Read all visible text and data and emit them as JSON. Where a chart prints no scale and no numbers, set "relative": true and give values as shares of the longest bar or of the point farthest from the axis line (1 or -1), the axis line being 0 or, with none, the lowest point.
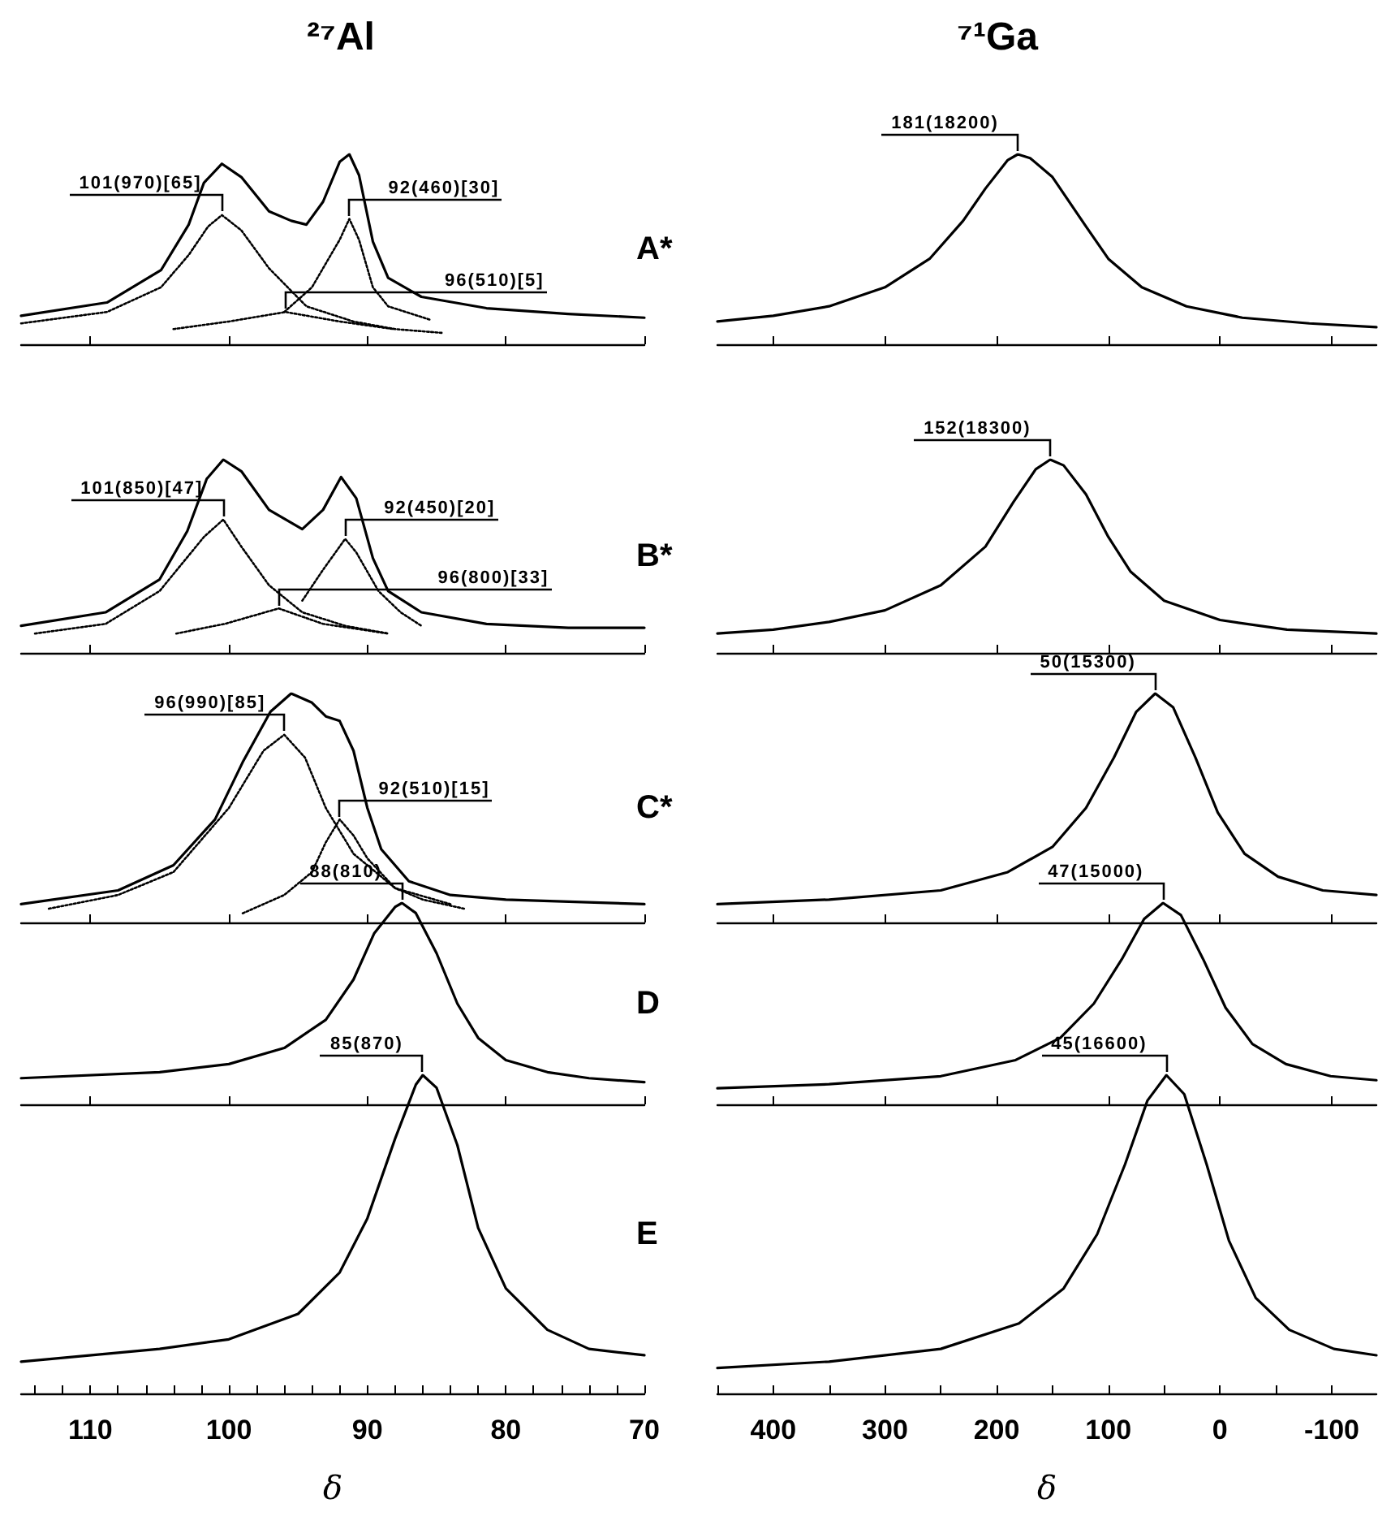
{
  "chart_data": [
    {
      "type": "line",
      "title": "²⁷Al",
      "relative": true,
      "xlim": [
        115,
        70
      ],
      "xticks": [
        110,
        100,
        90,
        80,
        70
      ],
      "tick_labels": false,
      "marker": "none",
      "line_style": "solid",
      "series": [
        {
          "color": "#000000",
          "x": [
            115,
            108.8,
            104.9,
            102.9,
            101.8,
            100.5,
            99.1,
            97.1,
            95.5,
            94.4,
            93.2,
            92.0,
            91.3,
            90.6,
            89.6,
            88.5,
            86.1,
            81.4,
            75.5,
            70
          ],
          "values": [
            0.15,
            0.22,
            0.39,
            0.63,
            0.85,
            0.95,
            0.88,
            0.7,
            0.65,
            0.63,
            0.75,
            0.96,
            1.0,
            0.89,
            0.54,
            0.35,
            0.25,
            0.19,
            0.16,
            0.14
          ]
        },
        {
          "color": "#000000",
          "line_style": "dotted",
          "x": [
            115,
            108.8,
            104.9,
            102.9,
            101.5,
            100.5,
            99.1,
            97.1,
            94.4,
            91,
            88,
            84.6
          ],
          "values": [
            0.11,
            0.17,
            0.3,
            0.47,
            0.62,
            0.68,
            0.6,
            0.4,
            0.2,
            0.12,
            0.08,
            0.06
          ]
        },
        {
          "color": "#000000",
          "line_style": "dotted",
          "x": [
            96,
            94,
            92.0,
            91.3,
            90.6,
            89.6,
            88.5,
            85.5
          ],
          "values": [
            0.17,
            0.3,
            0.55,
            0.66,
            0.55,
            0.3,
            0.2,
            0.13
          ]
        },
        {
          "color": "#000000",
          "line_style": "dotted",
          "x": [
            104,
            100,
            95.9,
            92,
            88.1
          ],
          "values": [
            0.08,
            0.12,
            0.17,
            0.12,
            0.08
          ]
        }
      ],
      "annotations": [
        {
          "text": "101(970)[65]",
          "x": 100.5,
          "y": 0.68
        },
        {
          "text": "92(460)[30]",
          "x": 91.3,
          "y": 0.66
        },
        {
          "text": "96(510)[5]",
          "x": 95.9,
          "y": 0.17
        }
      ]
    },
    {
      "type": "line",
      "title": "⁷¹Ga",
      "ylabel": "A*",
      "relative": true,
      "xlim": [
        450,
        -140
      ],
      "xticks": [
        400,
        300,
        200,
        100,
        0,
        -100
      ],
      "tick_labels": false,
      "marker": "none",
      "line_style": "solid",
      "series": [
        {
          "color": "#000000",
          "x": [
            450,
            400,
            350,
            300,
            260,
            230,
            210,
            190,
            181,
            170,
            150,
            120,
            100,
            70,
            30,
            -20,
            -80,
            -140
          ],
          "values": [
            0.12,
            0.15,
            0.2,
            0.3,
            0.45,
            0.65,
            0.82,
            0.97,
            1.0,
            0.98,
            0.88,
            0.62,
            0.45,
            0.3,
            0.2,
            0.14,
            0.11,
            0.09
          ]
        }
      ],
      "annotations": [
        {
          "text": "181(18200)",
          "x": 181,
          "y": 1.0
        }
      ]
    },
    {
      "type": "line",
      "relative": true,
      "xlim": [
        115,
        70
      ],
      "xticks": [
        110,
        100,
        90,
        80,
        70
      ],
      "tick_labels": false,
      "marker": "none",
      "line_style": "solid",
      "series": [
        {
          "color": "#000000",
          "x": [
            115,
            108.9,
            105,
            103,
            101.6,
            100.4,
            99.1,
            97.1,
            94.7,
            93.2,
            91.9,
            90.8,
            89.6,
            88.5,
            86.1,
            81.4,
            75.5,
            70
          ],
          "values": [
            0.14,
            0.21,
            0.38,
            0.63,
            0.9,
            1.0,
            0.94,
            0.74,
            0.64,
            0.74,
            0.91,
            0.8,
            0.49,
            0.32,
            0.21,
            0.15,
            0.13,
            0.13
          ]
        },
        {
          "color": "#000000",
          "line_style": "dotted",
          "x": [
            114,
            108.9,
            105,
            101.8,
            100.4,
            99.1,
            97.1,
            94.7,
            91.6,
            88.5
          ],
          "values": [
            0.1,
            0.15,
            0.32,
            0.6,
            0.69,
            0.55,
            0.35,
            0.21,
            0.14,
            0.1
          ]
        },
        {
          "color": "#000000",
          "line_style": "dotted",
          "x": [
            94.7,
            93.2,
            91.6,
            90.8,
            89.2,
            87.6,
            86.1
          ],
          "values": [
            0.27,
            0.43,
            0.59,
            0.52,
            0.32,
            0.21,
            0.14
          ]
        },
        {
          "color": "#000000",
          "line_style": "dotted",
          "x": [
            103.8,
            100.3,
            96.4,
            93.2,
            88.5
          ],
          "values": [
            0.1,
            0.15,
            0.23,
            0.15,
            0.1
          ]
        }
      ],
      "annotations": [
        {
          "text": "101(850)[47]",
          "x": 100.4,
          "y": 0.69
        },
        {
          "text": "92(450)[20]",
          "x": 91.6,
          "y": 0.59
        },
        {
          "text": "96(800)[33]",
          "x": 96.4,
          "y": 0.23
        }
      ]
    },
    {
      "type": "line",
      "ylabel": "B*",
      "relative": true,
      "xlim": [
        450,
        -140
      ],
      "xticks": [
        400,
        300,
        200,
        100,
        0,
        -100
      ],
      "tick_labels": false,
      "marker": "none",
      "line_style": "solid",
      "series": [
        {
          "color": "#000000",
          "x": [
            450,
            400,
            350,
            300,
            250,
            210,
            185,
            165,
            152,
            140,
            120,
            100,
            80,
            50,
            0,
            -60,
            -140
          ],
          "values": [
            0.1,
            0.12,
            0.16,
            0.22,
            0.35,
            0.55,
            0.78,
            0.95,
            1.0,
            0.97,
            0.82,
            0.6,
            0.42,
            0.27,
            0.17,
            0.12,
            0.1
          ]
        }
      ],
      "annotations": [
        {
          "text": "152(18300)",
          "x": 152,
          "y": 1.0
        }
      ]
    },
    {
      "type": "line",
      "relative": true,
      "xlim": [
        115,
        70
      ],
      "xticks": [
        110,
        100,
        90,
        80,
        70
      ],
      "tick_labels": false,
      "marker": "none",
      "line_style": "solid",
      "series": [
        {
          "color": "#000000",
          "x": [
            115,
            108,
            104,
            101,
            99,
            97,
            95.5,
            94,
            93,
            92,
            91,
            90,
            89,
            87,
            84,
            80,
            75,
            70
          ],
          "values": [
            0.08,
            0.14,
            0.25,
            0.45,
            0.7,
            0.92,
            1.0,
            0.96,
            0.9,
            0.88,
            0.75,
            0.5,
            0.32,
            0.18,
            0.12,
            0.1,
            0.09,
            0.08
          ]
        },
        {
          "color": "#000000",
          "line_style": "dotted",
          "x": [
            113,
            108,
            104,
            100,
            97.5,
            96,
            94.5,
            93,
            91,
            88,
            84
          ],
          "values": [
            0.06,
            0.12,
            0.22,
            0.5,
            0.75,
            0.82,
            0.72,
            0.5,
            0.3,
            0.15,
            0.08
          ]
        },
        {
          "color": "#000000",
          "line_style": "dotted",
          "x": [
            99,
            96,
            94,
            93,
            92,
            91,
            90,
            88,
            86,
            83
          ],
          "values": [
            0.04,
            0.12,
            0.22,
            0.35,
            0.45,
            0.38,
            0.28,
            0.15,
            0.1,
            0.06
          ]
        }
      ],
      "annotations": [
        {
          "text": "96(990)[85]",
          "x": 96,
          "y": 0.82
        },
        {
          "text": "92(510)[15]",
          "x": 92,
          "y": 0.45
        }
      ]
    },
    {
      "type": "line",
      "ylabel": "C*",
      "relative": true,
      "xlim": [
        450,
        -140
      ],
      "xticks": [
        400,
        300,
        200,
        100,
        0,
        -100
      ],
      "tick_labels": false,
      "marker": "none",
      "line_style": "solid",
      "series": [
        {
          "color": "#000000",
          "x": [
            450,
            350,
            250,
            190,
            150,
            120,
            95,
            75,
            58,
            42,
            22,
            2,
            -22,
            -52,
            -92,
            -140
          ],
          "values": [
            0.08,
            0.1,
            0.14,
            0.22,
            0.33,
            0.5,
            0.72,
            0.92,
            1.0,
            0.94,
            0.72,
            0.48,
            0.3,
            0.2,
            0.14,
            0.12
          ]
        }
      ],
      "annotations": [
        {
          "text": "50(15300)",
          "x": 58,
          "y": 1.0
        }
      ]
    },
    {
      "type": "line",
      "relative": true,
      "xlim": [
        115,
        70
      ],
      "xticks": [
        110,
        100,
        90,
        80,
        70
      ],
      "tick_labels": false,
      "marker": "none",
      "line_style": "solid",
      "series": [
        {
          "color": "#000000",
          "x": [
            115,
            105,
            100,
            96,
            93,
            91,
            89.5,
            88,
            87.5,
            86.5,
            85,
            83.5,
            82,
            80,
            77,
            74,
            70
          ],
          "values": [
            0.13,
            0.16,
            0.2,
            0.28,
            0.42,
            0.62,
            0.85,
            0.98,
            1.0,
            0.95,
            0.75,
            0.5,
            0.33,
            0.22,
            0.16,
            0.13,
            0.11
          ]
        }
      ],
      "annotations": [
        {
          "text": "88(810)",
          "x": 87.5,
          "y": 1.0
        }
      ]
    },
    {
      "type": "line",
      "ylabel": "D",
      "relative": true,
      "xlim": [
        450,
        -140
      ],
      "xticks": [
        400,
        300,
        200,
        100,
        0,
        -100
      ],
      "tick_labels": false,
      "marker": "none",
      "line_style": "solid",
      "series": [
        {
          "color": "#000000",
          "x": [
            450,
            350,
            250,
            183,
            143,
            113,
            88,
            68,
            51,
            35,
            15,
            -5,
            -29,
            -59,
            -99,
            -140
          ],
          "values": [
            0.08,
            0.1,
            0.14,
            0.22,
            0.33,
            0.5,
            0.72,
            0.92,
            1.0,
            0.94,
            0.72,
            0.48,
            0.3,
            0.2,
            0.14,
            0.12
          ]
        }
      ],
      "annotations": [
        {
          "text": "47(15000)",
          "x": 51,
          "y": 1.0
        }
      ]
    },
    {
      "type": "line",
      "relative": true,
      "xlim": [
        115,
        70
      ],
      "xlabel": "δ",
      "xticks": [
        {
          "value": 114,
          "label": null
        },
        {
          "value": 112,
          "label": null
        },
        110,
        {
          "value": 108,
          "label": null
        },
        {
          "value": 106,
          "label": null
        },
        {
          "value": 104,
          "label": null
        },
        {
          "value": 102,
          "label": null
        },
        100,
        {
          "value": 98,
          "label": null
        },
        {
          "value": 96,
          "label": null
        },
        {
          "value": 94,
          "label": null
        },
        {
          "value": 92,
          "label": null
        },
        90,
        {
          "value": 88,
          "label": null
        },
        {
          "value": 86,
          "label": null
        },
        {
          "value": 84,
          "label": null
        },
        {
          "value": 82,
          "label": null
        },
        80,
        {
          "value": 78,
          "label": null
        },
        {
          "value": 76,
          "label": null
        },
        {
          "value": 74,
          "label": null
        },
        {
          "value": 72,
          "label": null
        },
        70
      ],
      "marker": "none",
      "line_style": "solid",
      "series": [
        {
          "color": "#000000",
          "x": [
            115,
            105,
            100,
            95,
            92,
            90,
            88,
            86.5,
            86,
            85,
            83.5,
            82,
            80,
            77,
            74,
            70
          ],
          "values": [
            0.1,
            0.14,
            0.17,
            0.25,
            0.38,
            0.55,
            0.8,
            0.97,
            1.0,
            0.96,
            0.78,
            0.52,
            0.33,
            0.2,
            0.14,
            0.12
          ]
        }
      ],
      "annotations": [
        {
          "text": "85(870)",
          "x": 86,
          "y": 1.0
        }
      ]
    },
    {
      "type": "line",
      "ylabel": "E",
      "relative": true,
      "xlim": [
        450,
        -140
      ],
      "xlabel": "δ",
      "xticks": [
        {
          "value": 450,
          "label": null
        },
        400,
        {
          "value": 350,
          "label": null
        },
        300,
        {
          "value": 250,
          "label": null
        },
        200,
        {
          "value": 150,
          "label": null
        },
        100,
        {
          "value": 50,
          "label": null
        },
        0,
        {
          "value": -50,
          "label": null
        },
        -100
      ],
      "marker": "none",
      "line_style": "solid",
      "series": [
        {
          "color": "#000000",
          "x": [
            450,
            350,
            250,
            180,
            140,
            110,
            85,
            65,
            48,
            32,
            12,
            -8,
            -32,
            -62,
            -102,
            -140
          ],
          "values": [
            0.08,
            0.1,
            0.14,
            0.22,
            0.33,
            0.5,
            0.72,
            0.92,
            1.0,
            0.94,
            0.72,
            0.48,
            0.3,
            0.2,
            0.14,
            0.12
          ]
        }
      ],
      "annotations": [
        {
          "text": "45(16600)",
          "x": 48,
          "y": 1.0
        }
      ]
    }
  ]
}
